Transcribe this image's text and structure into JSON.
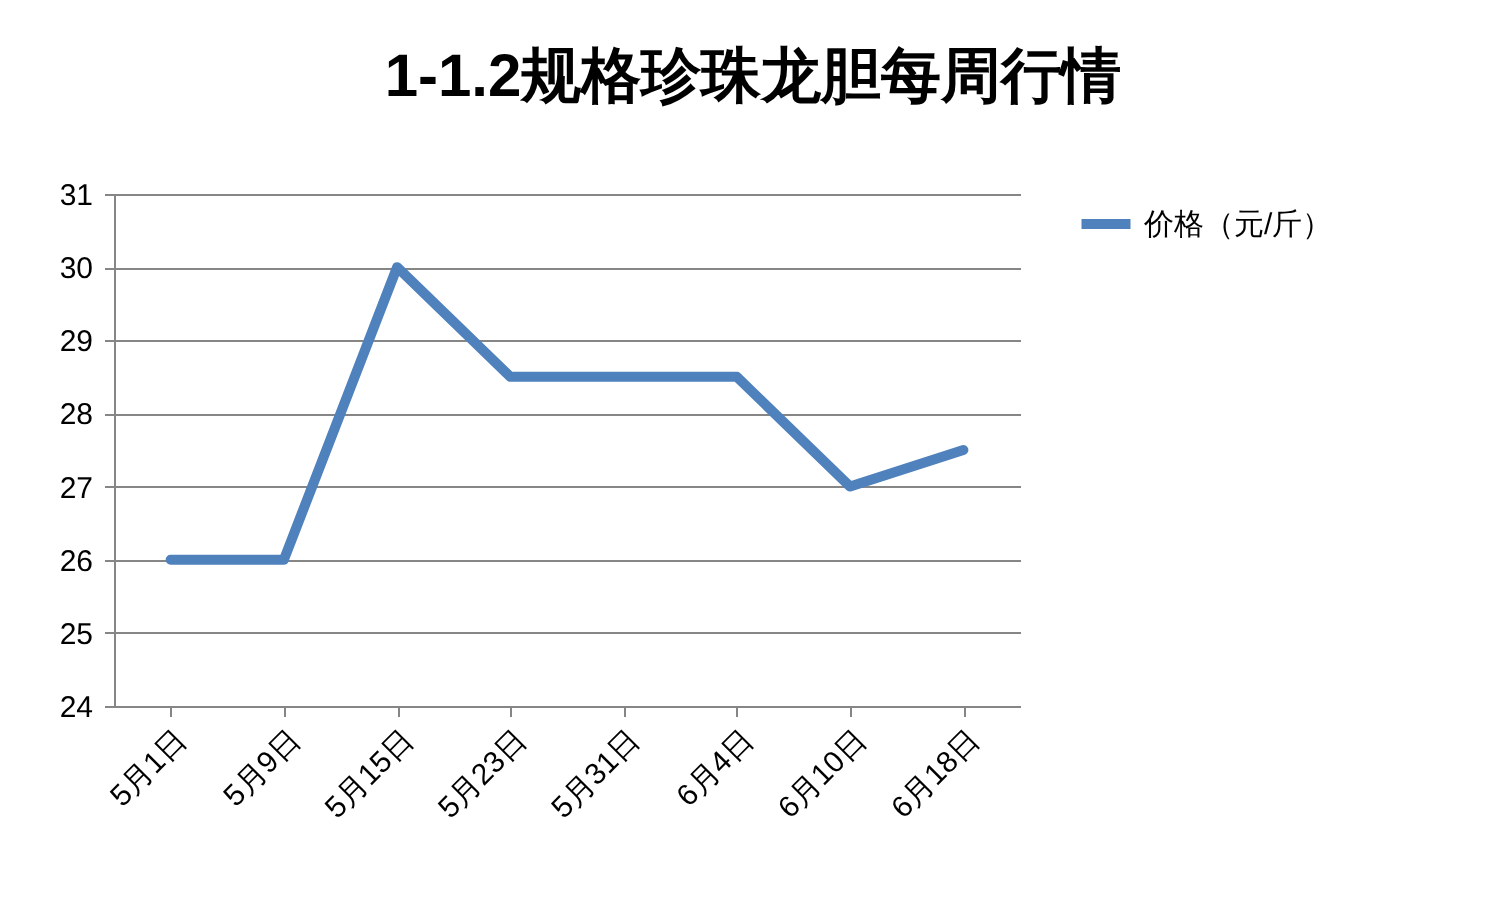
{
  "chart_data": {
    "type": "line",
    "title": "1-1.2规格珍珠龙胆每周行情",
    "categories": [
      "5月1日",
      "5月9日",
      "5月15日",
      "5月23日",
      "5月31日",
      "6月4日",
      "6月10日",
      "6月18日"
    ],
    "series": [
      {
        "name": "价格（元/斤）",
        "color": "#4f81bd",
        "values": [
          26,
          26,
          30,
          28.5,
          28.5,
          28.5,
          27,
          27.5
        ]
      }
    ],
    "ylim": [
      24,
      31
    ],
    "yticks": [
      24,
      25,
      26,
      27,
      28,
      29,
      30,
      31
    ],
    "grid": "y",
    "legend": "right",
    "marker": "none",
    "line_style": "solid"
  }
}
